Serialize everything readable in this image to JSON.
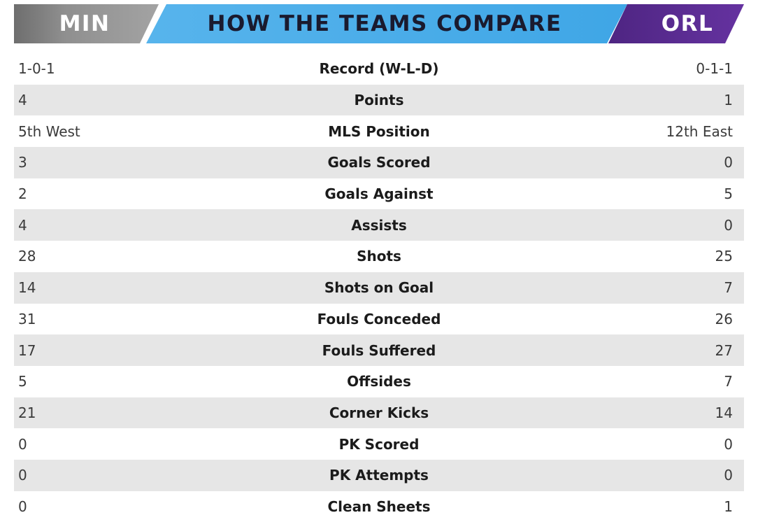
{
  "header": {
    "left_team": "MIN",
    "title": "HOW THE TEAMS COMPARE",
    "right_team": "ORL",
    "colors": {
      "left_band": "#8c8c8c",
      "center_band": "#56b3ea",
      "right_band": "#5b2c91"
    }
  },
  "rows": [
    {
      "left": "1-0-1",
      "label": "Record (W-L-D)",
      "right": "0-1-1"
    },
    {
      "left": "4",
      "label": "Points",
      "right": "1"
    },
    {
      "left": "5th West",
      "label": "MLS Position",
      "right": "12th East"
    },
    {
      "left": "3",
      "label": "Goals Scored",
      "right": "0"
    },
    {
      "left": "2",
      "label": "Goals Against",
      "right": "5"
    },
    {
      "left": "4",
      "label": "Assists",
      "right": "0"
    },
    {
      "left": "28",
      "label": "Shots",
      "right": "25"
    },
    {
      "left": "14",
      "label": "Shots on Goal",
      "right": "7"
    },
    {
      "left": "31",
      "label": "Fouls Conceded",
      "right": "26"
    },
    {
      "left": "17",
      "label": "Fouls Suffered",
      "right": "27"
    },
    {
      "left": "5",
      "label": "Offsides",
      "right": "7"
    },
    {
      "left": "21",
      "label": "Corner Kicks",
      "right": "14"
    },
    {
      "left": "0",
      "label": "PK Scored",
      "right": "0"
    },
    {
      "left": "0",
      "label": "PK Attempts",
      "right": "0"
    },
    {
      "left": "0",
      "label": "Clean Sheets",
      "right": "1"
    }
  ]
}
